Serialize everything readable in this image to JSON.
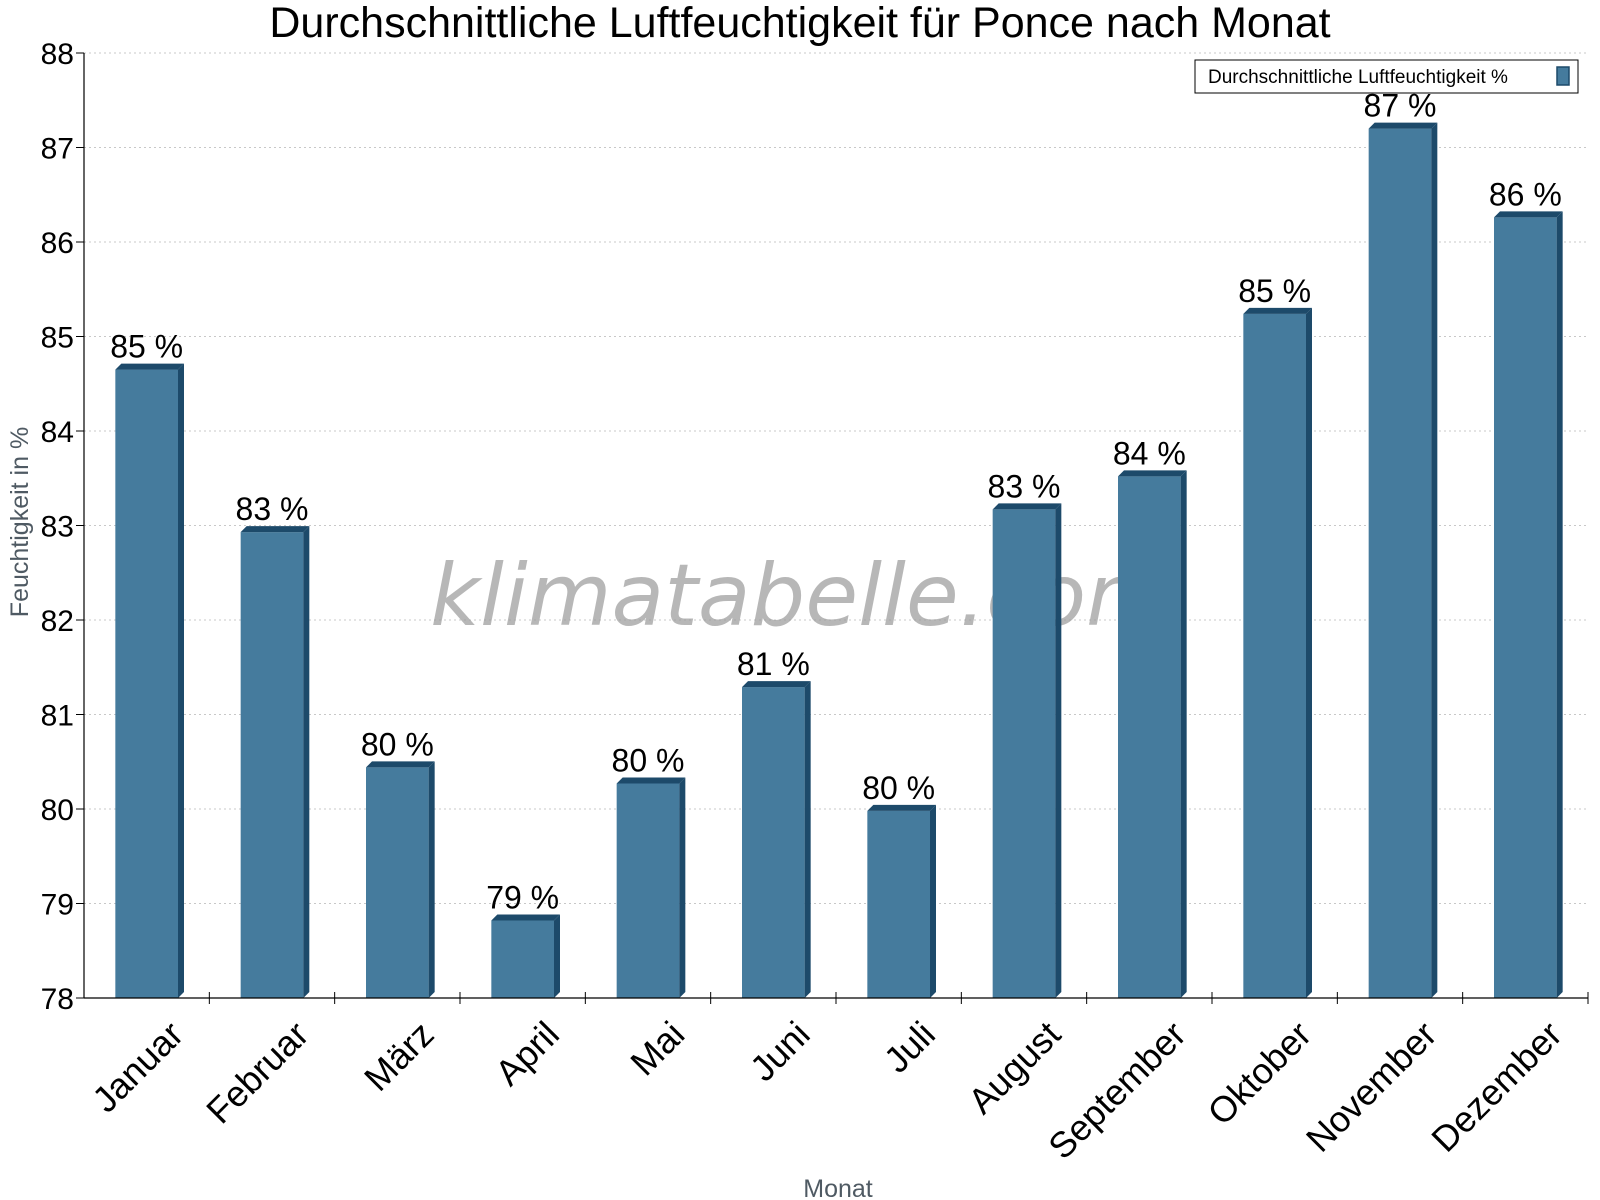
{
  "chart_data": {
    "type": "bar",
    "title": "Durchschnittliche Luftfeuchtigkeit für Ponce nach Monat",
    "xlabel": "Monat",
    "ylabel": "Feuchtigkeit in %",
    "ylim": [
      78,
      88
    ],
    "yticks": [
      78,
      79,
      80,
      81,
      82,
      83,
      84,
      85,
      86,
      87,
      88
    ],
    "grid": true,
    "legend_position": "top-right",
    "categories": [
      "Januar",
      "Februar",
      "März",
      "April",
      "Mai",
      "Juni",
      "Juli",
      "August",
      "September",
      "Oktober",
      "November",
      "Dezember"
    ],
    "series": [
      {
        "name": "Durchschnittliche Luftfeuchtigkeit %",
        "values": [
          84.65,
          82.93,
          80.44,
          78.82,
          80.27,
          81.29,
          79.98,
          83.17,
          83.52,
          85.24,
          87.2,
          86.26
        ],
        "data_labels": [
          "85 %",
          "83 %",
          "80 %",
          "79 %",
          "80 %",
          "81 %",
          "80 %",
          "83 %",
          "84 %",
          "85 %",
          "87 %",
          "86 %"
        ]
      }
    ],
    "colors": {
      "bar": "#457b9d",
      "bar_side": "#1d4a6a",
      "bar_top": "#1d4a6a"
    }
  },
  "watermark": "klimatabelle.com"
}
